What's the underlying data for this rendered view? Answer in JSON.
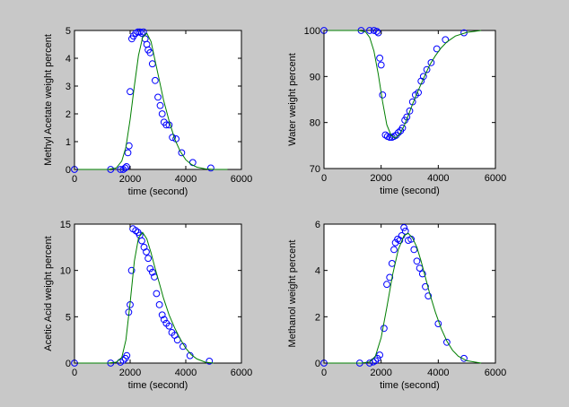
{
  "figure": {
    "background": "#c8c8c8"
  },
  "chart_data": [
    {
      "type": "line",
      "title": "",
      "xlabel": "time (second)",
      "ylabel": "Methyl Acetate weight percent",
      "xlim": [
        0,
        6000
      ],
      "ylim": [
        0,
        5
      ],
      "xticks": [
        0,
        2000,
        4000,
        6000
      ],
      "yticks": [
        0,
        1,
        2,
        3,
        4,
        5
      ],
      "grid": false,
      "series": [
        {
          "kind": "scatter",
          "color": "#0000ff",
          "x": [
            0,
            1300,
            1650,
            1750,
            1820,
            1870,
            1920,
            1960,
            2000,
            2060,
            2120,
            2200,
            2280,
            2350,
            2420,
            2480,
            2540,
            2600,
            2650,
            2720,
            2800,
            2900,
            3000,
            3080,
            3150,
            3220,
            3300,
            3400,
            3520,
            3650,
            3850,
            4250,
            4900
          ],
          "y": [
            0,
            0,
            0,
            0,
            0.05,
            0.1,
            0.6,
            0.85,
            2.8,
            4.7,
            4.8,
            4.9,
            4.95,
            4.95,
            4.9,
            4.95,
            4.7,
            4.5,
            4.3,
            4.2,
            3.8,
            3.2,
            2.6,
            2.3,
            2.0,
            1.7,
            1.6,
            1.6,
            1.15,
            1.1,
            0.6,
            0.25,
            0.05
          ]
        },
        {
          "kind": "line",
          "color": "#007f00",
          "x": [
            0,
            800,
            1200,
            1500,
            1700,
            1850,
            2000,
            2150,
            2300,
            2450,
            2600,
            2750,
            2900,
            3050,
            3200,
            3400,
            3600,
            3800,
            4000,
            4200,
            4400,
            4700,
            5000,
            5500
          ],
          "y": [
            0,
            0,
            0,
            0.05,
            0.3,
            0.8,
            1.8,
            3.0,
            4.1,
            4.75,
            4.9,
            4.6,
            3.9,
            3.2,
            2.5,
            1.75,
            1.1,
            0.65,
            0.35,
            0.18,
            0.08,
            0.02,
            0,
            0
          ]
        }
      ]
    },
    {
      "type": "line",
      "title": "",
      "xlabel": "time (second)",
      "ylabel": "Water weight percent",
      "xlim": [
        0,
        6000
      ],
      "ylim": [
        70,
        100
      ],
      "xticks": [
        0,
        2000,
        4000,
        6000
      ],
      "yticks": [
        70,
        80,
        90,
        100
      ],
      "grid": false,
      "series": [
        {
          "kind": "scatter",
          "color": "#0000ff",
          "x": [
            0,
            1300,
            1600,
            1750,
            1850,
            1900,
            1950,
            2000,
            2050,
            2150,
            2220,
            2300,
            2380,
            2450,
            2520,
            2600,
            2680,
            2750,
            2830,
            2900,
            3000,
            3100,
            3200,
            3300,
            3400,
            3480,
            3600,
            3750,
            3950,
            4250,
            4900
          ],
          "y": [
            100,
            100,
            100,
            100,
            99.8,
            99.5,
            94,
            92.5,
            86,
            77.3,
            77,
            76.8,
            76.8,
            77,
            77.2,
            77.8,
            78.2,
            78.8,
            80.5,
            81.2,
            82.5,
            84.5,
            86,
            86.5,
            89,
            90,
            91.5,
            93,
            96,
            98,
            99.5
          ]
        },
        {
          "kind": "line",
          "color": "#007f00",
          "x": [
            0,
            1200,
            1450,
            1600,
            1750,
            1900,
            2050,
            2200,
            2350,
            2500,
            2650,
            2800,
            2950,
            3100,
            3300,
            3500,
            3700,
            3900,
            4100,
            4300,
            4600,
            5000,
            5500
          ],
          "y": [
            100,
            100,
            99.7,
            98.5,
            95.5,
            90.5,
            84.5,
            79.5,
            77.2,
            76.6,
            77.5,
            79.2,
            81.5,
            84.0,
            87.0,
            89.8,
            92.5,
            94.5,
            96.2,
            97.5,
            98.8,
            99.6,
            100
          ]
        }
      ]
    },
    {
      "type": "line",
      "title": "",
      "xlabel": "time (second)",
      "ylabel": "Acetic Acid weight percent",
      "xlim": [
        0,
        6000
      ],
      "ylim": [
        0,
        15
      ],
      "xticks": [
        0,
        2000,
        4000,
        6000
      ],
      "yticks": [
        0,
        5,
        10,
        15
      ],
      "grid": false,
      "series": [
        {
          "kind": "scatter",
          "color": "#0000ff",
          "x": [
            0,
            1300,
            1650,
            1750,
            1830,
            1880,
            1950,
            2000,
            2050,
            2100,
            2200,
            2280,
            2350,
            2420,
            2500,
            2580,
            2650,
            2720,
            2800,
            2870,
            2950,
            3050,
            3150,
            3220,
            3300,
            3400,
            3500,
            3600,
            3700,
            3900,
            4150,
            4850
          ],
          "y": [
            0,
            0,
            0.1,
            0.3,
            0.5,
            0.8,
            5.5,
            6.3,
            10,
            14.5,
            14.3,
            14.1,
            13.8,
            13.2,
            12.5,
            12.0,
            11.3,
            10.2,
            9.8,
            9.3,
            7.5,
            6.3,
            5.2,
            4.7,
            4.3,
            4.0,
            3.3,
            3.0,
            2.5,
            1.8,
            0.8,
            0.2
          ]
        },
        {
          "kind": "line",
          "color": "#007f00",
          "x": [
            0,
            1200,
            1500,
            1700,
            1850,
            2000,
            2150,
            2300,
            2450,
            2600,
            2750,
            2900,
            3050,
            3200,
            3400,
            3600,
            3800,
            4000,
            4200,
            4400,
            4700,
            5000
          ],
          "y": [
            0,
            0,
            0.1,
            0.6,
            2.5,
            6.5,
            11.0,
            13.5,
            14.1,
            13.4,
            11.9,
            10.2,
            8.6,
            7.0,
            5.2,
            3.8,
            2.6,
            1.6,
            0.9,
            0.45,
            0.1,
            0
          ]
        }
      ]
    },
    {
      "type": "line",
      "title": "",
      "xlabel": "time (second)",
      "ylabel": "Methanol weight percent",
      "xlim": [
        0,
        6000
      ],
      "ylim": [
        0,
        6
      ],
      "xticks": [
        0,
        2000,
        4000,
        6000
      ],
      "yticks": [
        0,
        2,
        4,
        6
      ],
      "grid": false,
      "series": [
        {
          "kind": "scatter",
          "color": "#0000ff",
          "x": [
            0,
            1250,
            1600,
            1720,
            1800,
            1870,
            1950,
            2100,
            2200,
            2300,
            2380,
            2450,
            2500,
            2580,
            2650,
            2720,
            2800,
            2850,
            2950,
            3050,
            3150,
            3250,
            3350,
            3450,
            3550,
            3650,
            4000,
            4300,
            4900
          ],
          "y": [
            0,
            0,
            0,
            0.05,
            0.1,
            0.2,
            0.35,
            1.5,
            3.4,
            3.7,
            4.3,
            4.9,
            5.2,
            5.35,
            5.3,
            5.5,
            5.85,
            5.7,
            5.3,
            5.35,
            4.9,
            4.4,
            4.1,
            3.85,
            3.3,
            2.9,
            1.7,
            0.9,
            0.2
          ]
        },
        {
          "kind": "line",
          "color": "#007f00",
          "x": [
            0,
            1300,
            1600,
            1800,
            2000,
            2200,
            2400,
            2600,
            2800,
            2950,
            3100,
            3250,
            3400,
            3550,
            3700,
            3900,
            4100,
            4300,
            4500,
            4700,
            5000,
            5500
          ],
          "y": [
            0,
            0,
            0.05,
            0.3,
            1.1,
            2.4,
            3.8,
            4.9,
            5.5,
            5.6,
            5.4,
            5.0,
            4.4,
            3.7,
            3.0,
            2.2,
            1.5,
            0.95,
            0.55,
            0.3,
            0.1,
            0
          ]
        }
      ]
    }
  ]
}
